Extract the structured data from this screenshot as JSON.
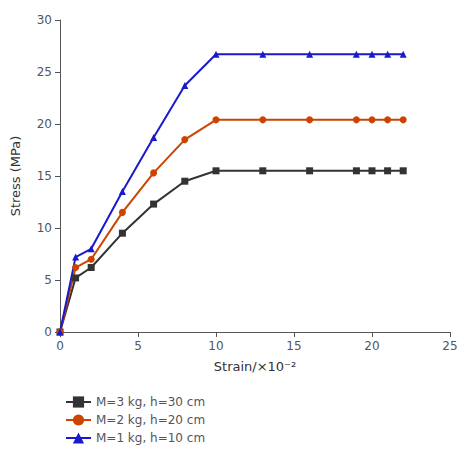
{
  "chart_data": {
    "type": "line",
    "xlabel": "Strain/×10⁻²",
    "ylabel": "Stress (MPa)",
    "xlim": [
      0,
      25
    ],
    "ylim": [
      0,
      30
    ],
    "xticks": [
      0,
      5,
      10,
      15,
      20,
      25
    ],
    "yticks": [
      0,
      5,
      10,
      15,
      20,
      25,
      30
    ],
    "grid": false,
    "legend": "bottom",
    "series": [
      {
        "name": "M=3 kg, h=30 cm",
        "color": "#333333",
        "marker": "square",
        "x": [
          0,
          1,
          2,
          4,
          6,
          8,
          10,
          13,
          16,
          19,
          20,
          21,
          22
        ],
        "values": [
          0,
          5.2,
          6.2,
          9.5,
          12.3,
          14.5,
          15.5,
          15.5,
          15.5,
          15.5,
          15.5,
          15.5,
          15.5
        ]
      },
      {
        "name": "M=2 kg, h=20 cm",
        "color": "#cc4400",
        "marker": "circle",
        "x": [
          0,
          1,
          2,
          4,
          6,
          8,
          10,
          13,
          16,
          19,
          20,
          21,
          22
        ],
        "values": [
          0,
          6.2,
          7.0,
          11.5,
          15.3,
          18.5,
          20.4,
          20.4,
          20.4,
          20.4,
          20.4,
          20.4,
          20.4
        ]
      },
      {
        "name": "M=1 kg, h=10 cm",
        "color": "#1a1acc",
        "marker": "triangle",
        "x": [
          0,
          1,
          2,
          4,
          6,
          8,
          10,
          13,
          16,
          19,
          20,
          21,
          22
        ],
        "values": [
          0,
          7.2,
          8.0,
          13.5,
          18.7,
          23.7,
          26.7,
          26.7,
          26.7,
          26.7,
          26.7,
          26.7,
          26.7
        ]
      }
    ]
  }
}
